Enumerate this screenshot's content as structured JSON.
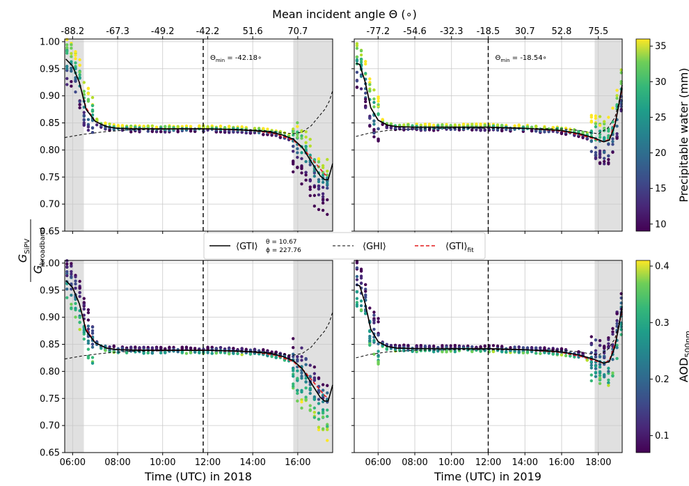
{
  "figure": {
    "top_axis_label": "Mean incident angle Θ (∘)",
    "ylabel_numerator": "G",
    "ylabel_num_sub": "SiPV",
    "ylabel_denominator": "G",
    "ylabel_den_sub": "broadband",
    "xlabel_left": "Time (UTC) in 2018",
    "xlabel_right": "Time (UTC) in 2019"
  },
  "legend": {
    "gti_main": "⟨GTI⟩",
    "gti_theta": "θ = 10.67",
    "gti_phi": "ϕ = 227.76",
    "ghi": "⟨GHI⟩",
    "gti_fit_main": "⟨GTI⟩",
    "gti_fit_sub": "fit",
    "colors": {
      "gti": "#000000",
      "ghi": "#000000",
      "fit": "#e41a1c"
    }
  },
  "colorbars": [
    {
      "label": "Precipitable water (mm)",
      "ticks": [
        "10",
        "15",
        "20",
        "25",
        "30",
        "35"
      ],
      "range": [
        9,
        36
      ]
    },
    {
      "label_main": "AOD",
      "label_sub": "500nm",
      "ticks": [
        "0.1",
        "0.2",
        "0.3",
        "0.4"
      ],
      "range": [
        0.07,
        0.41
      ]
    }
  ],
  "chart_data": [
    {
      "type": "scatter",
      "panel": "2018 · precipitable water",
      "x_ticks": [
        "06:00",
        "08:00",
        "10:00",
        "12:00",
        "14:00",
        "16:00"
      ],
      "x_tick_hours": [
        6,
        8,
        10,
        12,
        14,
        16
      ],
      "top_ticks": [
        "-88.2",
        "-67.3",
        "-49.2",
        "-42.2",
        "51.6",
        "70.7"
      ],
      "xlim": [
        5.65,
        17.55
      ],
      "ylim": [
        0.65,
        1.005
      ],
      "y_ticks": [
        "0.65",
        "0.70",
        "0.75",
        "0.80",
        "0.85",
        "0.90",
        "0.95",
        "1.00"
      ],
      "theta_min_label": "Θ",
      "theta_min_sub": "min",
      "theta_min_value": " = -42.18∘",
      "theta_min_hour": 11.8,
      "shaded": [
        [
          5.65,
          6.5
        ],
        [
          15.8,
          17.55
        ]
      ],
      "gti": [
        [
          5.7,
          0.968
        ],
        [
          6.0,
          0.955
        ],
        [
          6.3,
          0.925
        ],
        [
          6.6,
          0.875
        ],
        [
          7.0,
          0.853
        ],
        [
          7.5,
          0.843
        ],
        [
          8.0,
          0.84
        ],
        [
          9.0,
          0.839
        ],
        [
          10,
          0.839
        ],
        [
          11,
          0.839
        ],
        [
          12,
          0.839
        ],
        [
          13,
          0.838
        ],
        [
          14,
          0.836
        ],
        [
          14.8,
          0.833
        ],
        [
          15.3,
          0.828
        ],
        [
          15.8,
          0.82
        ],
        [
          16.2,
          0.805
        ],
        [
          16.5,
          0.785
        ],
        [
          16.8,
          0.765
        ],
        [
          17.0,
          0.752
        ],
        [
          17.2,
          0.745
        ],
        [
          17.35,
          0.745
        ],
        [
          17.55,
          0.775
        ]
      ],
      "ghi": [
        [
          5.65,
          0.823
        ],
        [
          6.5,
          0.829
        ],
        [
          7.5,
          0.834
        ],
        [
          8.5,
          0.837
        ],
        [
          10,
          0.838
        ],
        [
          12,
          0.839
        ],
        [
          13.5,
          0.838
        ],
        [
          14.5,
          0.836
        ],
        [
          15.3,
          0.832
        ],
        [
          15.8,
          0.83
        ],
        [
          16.2,
          0.833
        ],
        [
          16.6,
          0.845
        ],
        [
          16.9,
          0.86
        ],
        [
          17.2,
          0.875
        ],
        [
          17.4,
          0.89
        ],
        [
          17.55,
          0.91
        ]
      ],
      "fit": [
        [
          6.0,
          0.955
        ],
        [
          6.3,
          0.925
        ],
        [
          6.6,
          0.878
        ],
        [
          7.0,
          0.853
        ],
        [
          7.5,
          0.843
        ],
        [
          8,
          0.84
        ],
        [
          10,
          0.839
        ],
        [
          12,
          0.839
        ],
        [
          14,
          0.836
        ],
        [
          15,
          0.83
        ],
        [
          15.8,
          0.818
        ],
        [
          16.3,
          0.8
        ],
        [
          16.8,
          0.775
        ],
        [
          17.2,
          0.755
        ],
        [
          17.4,
          0.75
        ]
      ],
      "scatter_profile": "a"
    },
    {
      "type": "scatter",
      "panel": "2019 · precipitable water",
      "x_ticks": [
        "06:00",
        "08:00",
        "10:00",
        "12:00",
        "14:00",
        "16:00",
        "18:00"
      ],
      "x_tick_hours": [
        6,
        8,
        10,
        12,
        14,
        16,
        18
      ],
      "top_ticks": [
        "-77.2",
        "-54.6",
        "-32.3",
        "-18.5",
        "30.7",
        "52.8",
        "75.5"
      ],
      "xlim": [
        4.7,
        19.3
      ],
      "ylim": [
        0.65,
        1.005
      ],
      "theta_min_label": "Θ",
      "theta_min_sub": "min",
      "theta_min_value": " = -18.54∘",
      "theta_min_hour": 12.0,
      "shaded": [
        [
          17.8,
          19.3
        ]
      ],
      "gti": [
        [
          4.8,
          0.96
        ],
        [
          5.0,
          0.958
        ],
        [
          5.3,
          0.925
        ],
        [
          5.6,
          0.878
        ],
        [
          6.0,
          0.855
        ],
        [
          6.5,
          0.846
        ],
        [
          7,
          0.843
        ],
        [
          8,
          0.842
        ],
        [
          10,
          0.842
        ],
        [
          12,
          0.842
        ],
        [
          14,
          0.84
        ],
        [
          16,
          0.836
        ],
        [
          17,
          0.83
        ],
        [
          17.8,
          0.822
        ],
        [
          18.3,
          0.815
        ],
        [
          18.6,
          0.818
        ],
        [
          18.9,
          0.845
        ],
        [
          19.1,
          0.88
        ],
        [
          19.3,
          0.92
        ]
      ],
      "ghi": [
        [
          4.8,
          0.825
        ],
        [
          5.5,
          0.831
        ],
        [
          6.5,
          0.836
        ],
        [
          8,
          0.839
        ],
        [
          10,
          0.84
        ],
        [
          12,
          0.84
        ],
        [
          14,
          0.84
        ],
        [
          16,
          0.839
        ],
        [
          17,
          0.836
        ],
        [
          17.6,
          0.832
        ],
        [
          18.0,
          0.83
        ],
        [
          18.5,
          0.84
        ],
        [
          18.9,
          0.86
        ],
        [
          19.1,
          0.885
        ],
        [
          19.3,
          0.92
        ]
      ],
      "fit": [
        [
          5.0,
          0.958
        ],
        [
          5.3,
          0.925
        ],
        [
          5.6,
          0.878
        ],
        [
          6.0,
          0.855
        ],
        [
          6.5,
          0.846
        ],
        [
          7,
          0.843
        ],
        [
          8,
          0.842
        ],
        [
          10,
          0.842
        ],
        [
          12,
          0.842
        ],
        [
          14,
          0.84
        ],
        [
          16,
          0.835
        ],
        [
          17,
          0.828
        ],
        [
          17.8,
          0.82
        ],
        [
          18.3,
          0.815
        ],
        [
          18.6,
          0.82
        ],
        [
          18.9,
          0.85
        ],
        [
          19.1,
          0.88
        ],
        [
          19.3,
          0.915
        ]
      ],
      "scatter_profile": "b"
    },
    {
      "type": "scatter",
      "panel": "2018 · AOD 500nm",
      "x_ticks": [
        "06:00",
        "08:00",
        "10:00",
        "12:00",
        "14:00",
        "16:00"
      ],
      "x_tick_hours": [
        6,
        8,
        10,
        12,
        14,
        16
      ],
      "xlim": [
        5.65,
        17.55
      ],
      "ylim": [
        0.65,
        1.005
      ],
      "theta_min_hour": 11.8,
      "shaded": [
        [
          5.65,
          6.5
        ],
        [
          15.8,
          17.55
        ]
      ],
      "gti": [
        [
          5.7,
          0.968
        ],
        [
          6.0,
          0.955
        ],
        [
          6.3,
          0.925
        ],
        [
          6.6,
          0.875
        ],
        [
          7.0,
          0.853
        ],
        [
          7.5,
          0.843
        ],
        [
          8.0,
          0.84
        ],
        [
          9.0,
          0.839
        ],
        [
          10,
          0.839
        ],
        [
          11,
          0.839
        ],
        [
          12,
          0.839
        ],
        [
          13,
          0.838
        ],
        [
          14,
          0.836
        ],
        [
          14.8,
          0.833
        ],
        [
          15.3,
          0.828
        ],
        [
          15.8,
          0.82
        ],
        [
          16.2,
          0.805
        ],
        [
          16.5,
          0.785
        ],
        [
          16.8,
          0.765
        ],
        [
          17.0,
          0.752
        ],
        [
          17.2,
          0.745
        ],
        [
          17.35,
          0.745
        ],
        [
          17.55,
          0.775
        ]
      ],
      "ghi": [
        [
          5.65,
          0.823
        ],
        [
          6.5,
          0.829
        ],
        [
          7.5,
          0.834
        ],
        [
          8.5,
          0.837
        ],
        [
          10,
          0.838
        ],
        [
          12,
          0.839
        ],
        [
          13.5,
          0.838
        ],
        [
          14.5,
          0.836
        ],
        [
          15.3,
          0.832
        ],
        [
          15.8,
          0.83
        ],
        [
          16.2,
          0.833
        ],
        [
          16.6,
          0.845
        ],
        [
          16.9,
          0.86
        ],
        [
          17.2,
          0.875
        ],
        [
          17.4,
          0.89
        ],
        [
          17.55,
          0.91
        ]
      ],
      "fit": [
        [
          6.0,
          0.955
        ],
        [
          6.3,
          0.925
        ],
        [
          6.6,
          0.878
        ],
        [
          7.0,
          0.853
        ],
        [
          7.5,
          0.843
        ],
        [
          8,
          0.84
        ],
        [
          10,
          0.839
        ],
        [
          12,
          0.839
        ],
        [
          14,
          0.836
        ],
        [
          15,
          0.83
        ],
        [
          15.8,
          0.818
        ],
        [
          16.3,
          0.8
        ],
        [
          16.8,
          0.775
        ],
        [
          17.2,
          0.755
        ],
        [
          17.4,
          0.75
        ]
      ],
      "scatter_profile": "c"
    },
    {
      "type": "scatter",
      "panel": "2019 · AOD 500nm",
      "x_ticks": [
        "06:00",
        "08:00",
        "10:00",
        "12:00",
        "14:00",
        "16:00",
        "18:00"
      ],
      "x_tick_hours": [
        6,
        8,
        10,
        12,
        14,
        16,
        18
      ],
      "xlim": [
        4.7,
        19.3
      ],
      "ylim": [
        0.65,
        1.005
      ],
      "theta_min_hour": 12.0,
      "shaded": [
        [
          17.8,
          19.3
        ]
      ],
      "gti": [
        [
          4.8,
          0.96
        ],
        [
          5.0,
          0.958
        ],
        [
          5.3,
          0.925
        ],
        [
          5.6,
          0.878
        ],
        [
          6.0,
          0.855
        ],
        [
          6.5,
          0.846
        ],
        [
          7,
          0.843
        ],
        [
          8,
          0.842
        ],
        [
          10,
          0.842
        ],
        [
          12,
          0.842
        ],
        [
          14,
          0.84
        ],
        [
          16,
          0.836
        ],
        [
          17,
          0.83
        ],
        [
          17.8,
          0.822
        ],
        [
          18.3,
          0.815
        ],
        [
          18.6,
          0.818
        ],
        [
          18.9,
          0.845
        ],
        [
          19.1,
          0.88
        ],
        [
          19.3,
          0.92
        ]
      ],
      "ghi": [
        [
          4.8,
          0.825
        ],
        [
          5.5,
          0.831
        ],
        [
          6.5,
          0.836
        ],
        [
          8,
          0.839
        ],
        [
          10,
          0.84
        ],
        [
          12,
          0.84
        ],
        [
          14,
          0.84
        ],
        [
          16,
          0.839
        ],
        [
          17,
          0.836
        ],
        [
          17.6,
          0.832
        ],
        [
          18.0,
          0.83
        ],
        [
          18.5,
          0.84
        ],
        [
          18.9,
          0.86
        ],
        [
          19.1,
          0.885
        ],
        [
          19.3,
          0.92
        ]
      ],
      "fit": [
        [
          5.0,
          0.958
        ],
        [
          5.3,
          0.925
        ],
        [
          5.6,
          0.878
        ],
        [
          6.0,
          0.855
        ],
        [
          6.5,
          0.846
        ],
        [
          7,
          0.843
        ],
        [
          8,
          0.842
        ],
        [
          10,
          0.842
        ],
        [
          12,
          0.842
        ],
        [
          14,
          0.84
        ],
        [
          16,
          0.835
        ],
        [
          17,
          0.828
        ],
        [
          17.8,
          0.82
        ],
        [
          18.3,
          0.815
        ],
        [
          18.6,
          0.82
        ],
        [
          18.9,
          0.85
        ],
        [
          19.1,
          0.88
        ],
        [
          19.3,
          0.915
        ]
      ],
      "scatter_profile": "d"
    }
  ]
}
